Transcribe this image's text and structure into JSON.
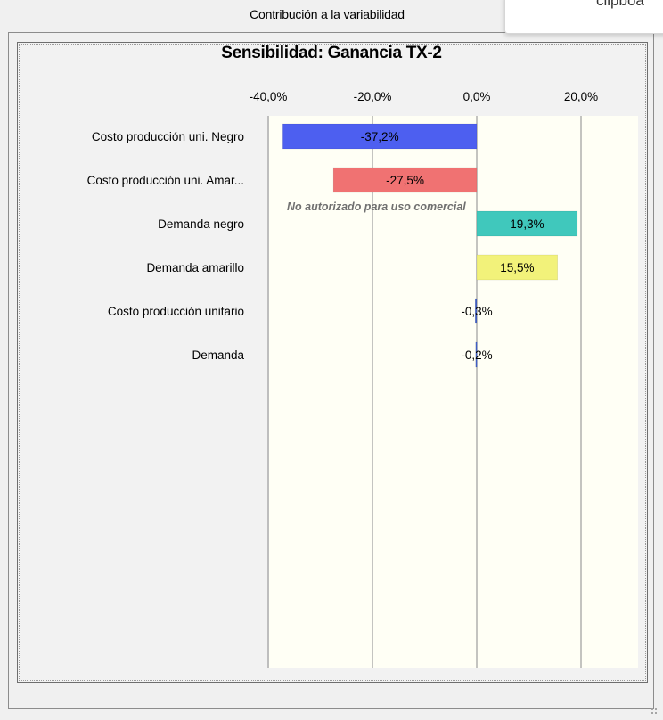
{
  "window": {
    "title": "Contribución a la variabilidad",
    "tooltip_text": "clipboa"
  },
  "watermark": "No autorizado para uso comercial",
  "chart_data": {
    "type": "bar",
    "orientation": "horizontal",
    "title": "Sensibilidad: Ganancia TX-2",
    "xlabel": "",
    "ylabel": "",
    "xlim": [
      -40,
      20
    ],
    "x_ticks": [
      -40,
      -20,
      0,
      20
    ],
    "x_tick_labels": [
      "-40,0%",
      "-20,0%",
      "0,0%",
      "20,0%"
    ],
    "axis_position": "top",
    "grid": true,
    "plot_background": "#fffff5",
    "categories": [
      "Costo producción uni. Negro",
      "Costo producción uni.  Amar...",
      "Demanda negro",
      "Demanda amarillo",
      "Costo producción unitario",
      "Demanda"
    ],
    "values": [
      -37.2,
      -27.5,
      19.3,
      15.5,
      -0.3,
      -0.2
    ],
    "value_labels": [
      "-37,2%",
      "-27,5%",
      "19,3%",
      "15,5%",
      "-0,3%",
      "-0,2%"
    ],
    "colors": [
      "#4d5ff0",
      "#f07272",
      "#40c8bc",
      "#f2f27a",
      "#4060c8",
      "#4060c8"
    ]
  }
}
